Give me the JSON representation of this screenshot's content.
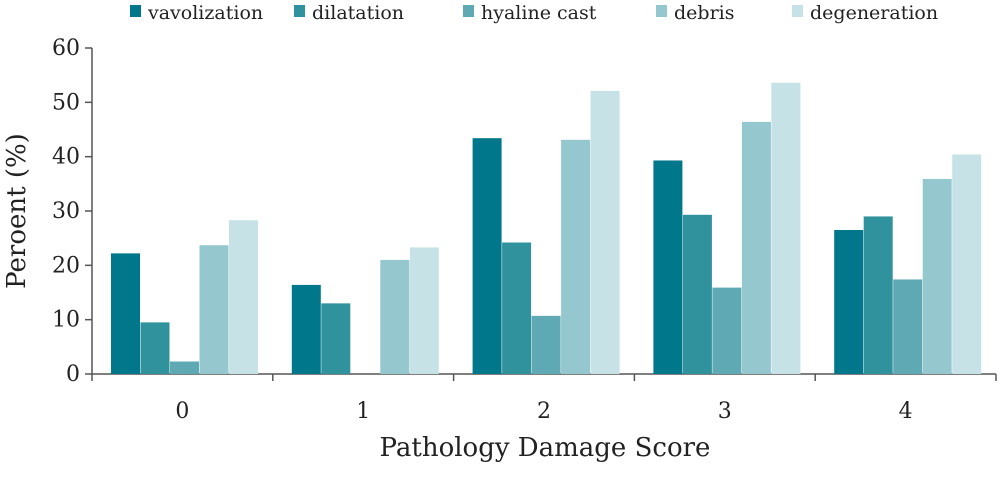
{
  "chart_data": {
    "type": "bar",
    "title": "",
    "xlabel": "Pathology Damage Score",
    "ylabel": "Peroent (%)",
    "categories": [
      "0",
      "1",
      "2",
      "3",
      "4"
    ],
    "ylim": [
      0,
      60
    ],
    "yticks": [
      0,
      10,
      20,
      30,
      40,
      50,
      60
    ],
    "grid": false,
    "legend_position": "top",
    "series": [
      {
        "name": "vavolization",
        "color": "#00778a",
        "values": [
          22.2,
          16.4,
          43.4,
          39.3,
          26.5
        ]
      },
      {
        "name": "dilatation",
        "color": "#2f929c",
        "values": [
          9.5,
          13.0,
          24.2,
          29.3,
          29.0
        ]
      },
      {
        "name": "hyaline cast",
        "color": "#5fa9b4",
        "values": [
          2.3,
          0,
          10.7,
          15.9,
          17.4
        ]
      },
      {
        "name": "debris",
        "color": "#95c7cf",
        "values": [
          23.7,
          21.0,
          43.1,
          46.4,
          35.9
        ]
      },
      {
        "name": "degeneration",
        "color": "#c7e2e6",
        "values": [
          28.3,
          23.3,
          52.1,
          53.6,
          40.4
        ]
      }
    ]
  }
}
